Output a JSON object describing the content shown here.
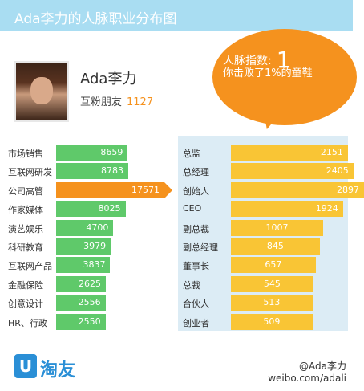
{
  "header": {
    "title": "Ada李力的人脉职业分布图"
  },
  "bubble": {
    "label": "人脉指数:",
    "index": "1",
    "subtitle": "你击败了1%的童鞋"
  },
  "user": {
    "name": "Ada李力",
    "friends_label": "互粉朋友",
    "friends_count": "1127"
  },
  "left": [
    {
      "label": "市场销售",
      "value": 8659
    },
    {
      "label": "互联网研发",
      "value": 8783
    },
    {
      "label": "公司高管",
      "value": 17571
    },
    {
      "label": "作家媒体",
      "value": 8025
    },
    {
      "label": "演艺娱乐",
      "value": 4700
    },
    {
      "label": "科研教育",
      "value": 3979
    },
    {
      "label": "互联网产品",
      "value": 3837
    },
    {
      "label": "金融保险",
      "value": 2625
    },
    {
      "label": "创意设计",
      "value": 2556
    },
    {
      "label": "HR、行政",
      "value": 2550
    }
  ],
  "right": [
    {
      "label": "总监",
      "value": 2151
    },
    {
      "label": "总经理",
      "value": 2405
    },
    {
      "label": "创始人",
      "value": 2897
    },
    {
      "label": "CEO",
      "value": 1924
    },
    {
      "label": "副总裁",
      "value": 1007
    },
    {
      "label": "副总经理",
      "value": 845
    },
    {
      "label": "董事长",
      "value": 657
    },
    {
      "label": "总裁",
      "value": 545
    },
    {
      "label": "合伙人",
      "value": 513
    },
    {
      "label": "创业者",
      "value": 509
    }
  ],
  "highlight": {
    "left_index": 2,
    "right_index": 2
  },
  "logo": {
    "mark": "U",
    "text": "淘友"
  },
  "weibo": {
    "handle": "@Ada李力",
    "url": "weibo.com/adali"
  },
  "colors": {
    "green": "#5fc96a",
    "orange": "#f5921e",
    "yellow": "#f9c535",
    "header": "#a9ddf2"
  }
}
